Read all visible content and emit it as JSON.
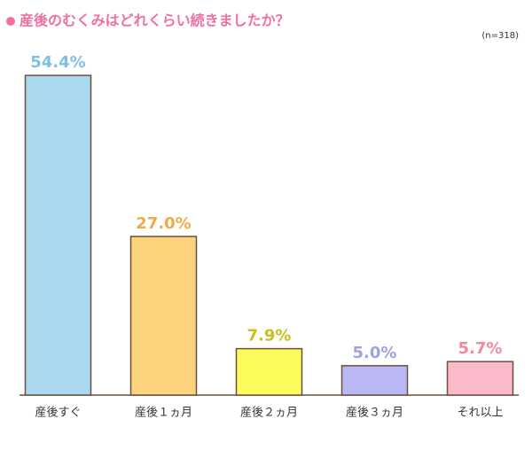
{
  "chart_data": {
    "type": "bar",
    "title": "産後のむくみはどれくらい続きましたか？",
    "subtitle": "(n=318)",
    "categories": [
      "産後すぐ",
      "産後１ヵ月",
      "産後２ヵ月",
      "産後３ヵ月",
      "それ以上"
    ],
    "values": [
      54.4,
      27.0,
      7.9,
      5.0,
      5.7
    ],
    "value_labels": [
      "54.4%",
      "27.0%",
      "7.9%",
      "5.0%",
      "5.7%"
    ],
    "colors": [
      "#a9d9ee",
      "#fdd27c",
      "#fcfc5c",
      "#bab8f4",
      "#fcb9c9"
    ],
    "label_colors": [
      "#7fc0e2",
      "#f2a94a",
      "#c9c020",
      "#a0a0e2",
      "#f08aa2"
    ],
    "ylim": [
      0,
      60
    ]
  }
}
